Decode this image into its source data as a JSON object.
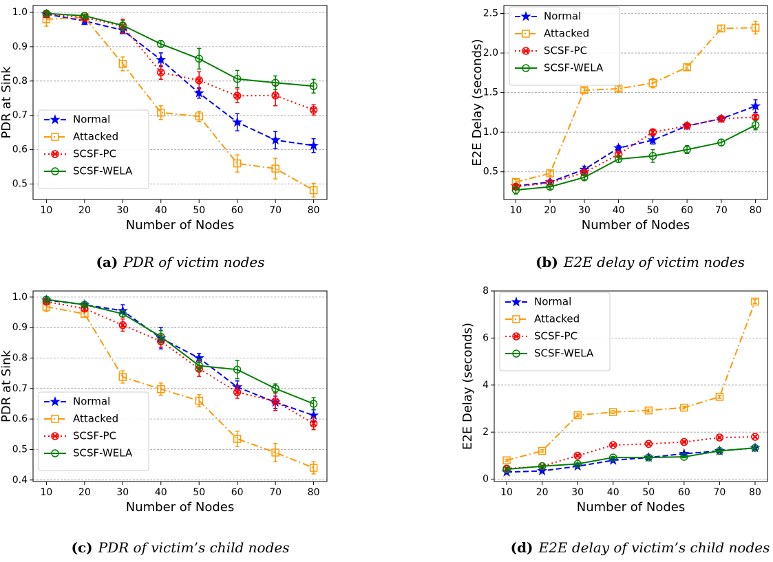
{
  "chart_data": [
    {
      "type": "line",
      "caption_label": "(a)",
      "caption": "PDR of victim nodes",
      "xlabel": "Number of Nodes",
      "ylabel": "PDR at Sink",
      "x": [
        10,
        20,
        30,
        40,
        50,
        60,
        70,
        80
      ],
      "xlim": [
        6.5,
        83.5
      ],
      "xticks": [
        10,
        20,
        30,
        40,
        50,
        60,
        70,
        80
      ],
      "ylim": [
        0.455,
        1.02
      ],
      "yticks": [
        0.5,
        0.6,
        0.7,
        0.8,
        0.9,
        {
          "value": 1,
          "label": "1.0"
        }
      ],
      "grid": true,
      "legend": "lower left",
      "series": [
        {
          "name": "Normal",
          "color": "#0000ff",
          "marker": "star",
          "linestyle": "dashed",
          "values": [
            0.995,
            0.975,
            0.948,
            0.862,
            0.765,
            0.68,
            0.628,
            0.612
          ],
          "errors": [
            0.01,
            0.01,
            0.01,
            0.02,
            0.015,
            0.025,
            0.025,
            0.02
          ]
        },
        {
          "name": "Attacked",
          "color": "#ff9900",
          "marker": "square",
          "linestyle": "dashdot",
          "values": [
            0.98,
            0.985,
            0.85,
            0.708,
            0.697,
            0.56,
            0.545,
            0.482
          ],
          "errors": [
            0.02,
            0.01,
            0.02,
            0.02,
            0.015,
            0.025,
            0.03,
            0.02
          ]
        },
        {
          "name": "SCSF-PC",
          "color": "#ff0000",
          "marker": "xcircle",
          "linestyle": "dotted",
          "values": [
            0.995,
            0.985,
            0.96,
            0.825,
            0.802,
            0.757,
            0.758,
            0.716
          ],
          "errors": [
            0.01,
            0.01,
            0.02,
            0.02,
            0.025,
            0.02,
            0.03,
            0.015
          ]
        },
        {
          "name": "SCSF-WELA",
          "color": "#008000",
          "marker": "circle",
          "linestyle": "solid",
          "values": [
            0.997,
            0.99,
            0.962,
            0.908,
            0.865,
            0.806,
            0.795,
            0.785
          ],
          "errors": [
            0.005,
            0.005,
            0.015,
            0.01,
            0.03,
            0.025,
            0.02,
            0.02
          ]
        }
      ]
    },
    {
      "type": "line",
      "caption_label": "(b)",
      "caption": "E2E delay of victim nodes",
      "xlabel": "Number of Nodes",
      "ylabel": "E2E Delay (seconds)",
      "x": [
        10,
        20,
        30,
        40,
        50,
        60,
        70,
        80
      ],
      "xlim": [
        6.5,
        83.5
      ],
      "xticks": [
        10,
        20,
        30,
        40,
        50,
        60,
        70,
        80
      ],
      "ylim": [
        0.15,
        2.6
      ],
      "yticks": [
        0.5,
        {
          "value": 1,
          "label": "1.0"
        },
        1.5,
        {
          "value": 2,
          "label": "2.0"
        },
        2.5
      ],
      "grid": true,
      "legend": "upper left",
      "series": [
        {
          "name": "Normal",
          "color": "#0000ff",
          "marker": "star",
          "linestyle": "dashed",
          "values": [
            0.32,
            0.37,
            0.53,
            0.8,
            0.9,
            1.08,
            1.17,
            1.33
          ],
          "errors": [
            0.03,
            0.03,
            0.04,
            0.03,
            0.05,
            0.03,
            0.03,
            0.08
          ]
        },
        {
          "name": "Attacked",
          "color": "#ff9900",
          "marker": "square",
          "linestyle": "dashdot",
          "values": [
            0.37,
            0.48,
            1.53,
            1.55,
            1.62,
            1.82,
            2.31,
            2.32
          ],
          "errors": [
            0.03,
            0.03,
            0.03,
            0.03,
            0.06,
            0.03,
            0.04,
            0.08
          ]
        },
        {
          "name": "SCSF-PC",
          "color": "#ff0000",
          "marker": "xcircle",
          "linestyle": "dotted",
          "values": [
            0.31,
            0.36,
            0.49,
            0.72,
            1.0,
            1.08,
            1.17,
            1.19
          ],
          "errors": [
            0.03,
            0.02,
            0.03,
            0.03,
            0.03,
            0.03,
            0.03,
            0.03
          ]
        },
        {
          "name": "SCSF-WELA",
          "color": "#008000",
          "marker": "circle",
          "linestyle": "solid",
          "values": [
            0.27,
            0.31,
            0.43,
            0.66,
            0.7,
            0.78,
            0.87,
            1.09
          ],
          "errors": [
            0.05,
            0.03,
            0.03,
            0.04,
            0.08,
            0.05,
            0.04,
            0.06
          ]
        }
      ]
    },
    {
      "type": "line",
      "caption_label": "(c)",
      "caption": "PDR of victim’s child nodes",
      "xlabel": "Number of Nodes",
      "ylabel": "PDR at Sink",
      "x": [
        10,
        20,
        30,
        40,
        50,
        60,
        70,
        80
      ],
      "xlim": [
        6.5,
        83.5
      ],
      "xticks": [
        10,
        20,
        30,
        40,
        50,
        60,
        70,
        80
      ],
      "ylim": [
        0.395,
        1.02
      ],
      "yticks": [
        0.4,
        0.5,
        0.6,
        0.7,
        0.8,
        0.9,
        {
          "value": 1,
          "label": "1.0"
        }
      ],
      "grid": true,
      "legend": "lower left",
      "series": [
        {
          "name": "Normal",
          "color": "#0000ff",
          "marker": "star",
          "linestyle": "dashed",
          "values": [
            0.99,
            0.975,
            0.955,
            0.865,
            0.8,
            0.705,
            0.655,
            0.612
          ],
          "errors": [
            0.005,
            0.005,
            0.02,
            0.035,
            0.015,
            0.02,
            0.02,
            0.02
          ]
        },
        {
          "name": "Attacked",
          "color": "#ff9900",
          "marker": "square",
          "linestyle": "dashdot",
          "values": [
            0.968,
            0.945,
            0.738,
            0.698,
            0.66,
            0.535,
            0.49,
            0.44
          ],
          "errors": [
            0.015,
            0.01,
            0.02,
            0.02,
            0.02,
            0.025,
            0.03,
            0.02
          ]
        },
        {
          "name": "SCSF-PC",
          "color": "#ff0000",
          "marker": "xcircle",
          "linestyle": "dotted",
          "values": [
            0.985,
            0.962,
            0.908,
            0.855,
            0.765,
            0.688,
            0.658,
            0.585
          ],
          "errors": [
            0.01,
            0.01,
            0.02,
            0.02,
            0.025,
            0.02,
            0.03,
            0.02
          ]
        },
        {
          "name": "SCSF-WELA",
          "color": "#008000",
          "marker": "circle",
          "linestyle": "solid",
          "values": [
            0.992,
            0.975,
            0.945,
            0.87,
            0.775,
            0.762,
            0.7,
            0.65
          ],
          "errors": [
            0.005,
            0.005,
            0.01,
            0.02,
            0.02,
            0.03,
            0.015,
            0.02
          ]
        }
      ]
    },
    {
      "type": "line",
      "caption_label": "(d)",
      "caption": "E2E delay of victim’s child nodes",
      "xlabel": "Number of Nodes",
      "ylabel": "E2E Delay (seconds)",
      "x": [
        10,
        20,
        30,
        40,
        50,
        60,
        70,
        80
      ],
      "xlim": [
        6.5,
        83.5
      ],
      "xticks": [
        10,
        20,
        30,
        40,
        50,
        60,
        70,
        80
      ],
      "ylim": [
        -0.1,
        8.0
      ],
      "yticks": [
        0,
        2,
        4,
        6,
        8
      ],
      "grid": true,
      "legend": "upper left",
      "series": [
        {
          "name": "Normal",
          "color": "#0000ff",
          "marker": "star",
          "linestyle": "dashed",
          "values": [
            0.3,
            0.35,
            0.55,
            0.8,
            0.92,
            1.08,
            1.2,
            1.33
          ],
          "errors": [
            0.03,
            0.03,
            0.04,
            0.04,
            0.04,
            0.04,
            0.04,
            0.05
          ]
        },
        {
          "name": "Attacked",
          "color": "#ff9900",
          "marker": "square",
          "linestyle": "dashdot",
          "values": [
            0.8,
            1.2,
            2.72,
            2.85,
            2.92,
            3.04,
            3.5,
            7.55
          ],
          "errors": [
            0.05,
            0.05,
            0.06,
            0.06,
            0.06,
            0.06,
            0.06,
            0.08
          ]
        },
        {
          "name": "SCSF-PC",
          "color": "#ff0000",
          "marker": "xcircle",
          "linestyle": "dotted",
          "values": [
            0.45,
            0.55,
            1.0,
            1.45,
            1.5,
            1.58,
            1.77,
            1.8
          ],
          "errors": [
            0.04,
            0.04,
            0.04,
            0.04,
            0.04,
            0.04,
            0.04,
            0.04
          ]
        },
        {
          "name": "SCSF-WELA",
          "color": "#008000",
          "marker": "circle",
          "linestyle": "solid",
          "values": [
            0.42,
            0.55,
            0.65,
            0.92,
            0.92,
            0.95,
            1.2,
            1.33
          ],
          "errors": [
            0.04,
            0.04,
            0.04,
            0.04,
            0.04,
            0.04,
            0.04,
            0.05
          ]
        }
      ]
    }
  ]
}
